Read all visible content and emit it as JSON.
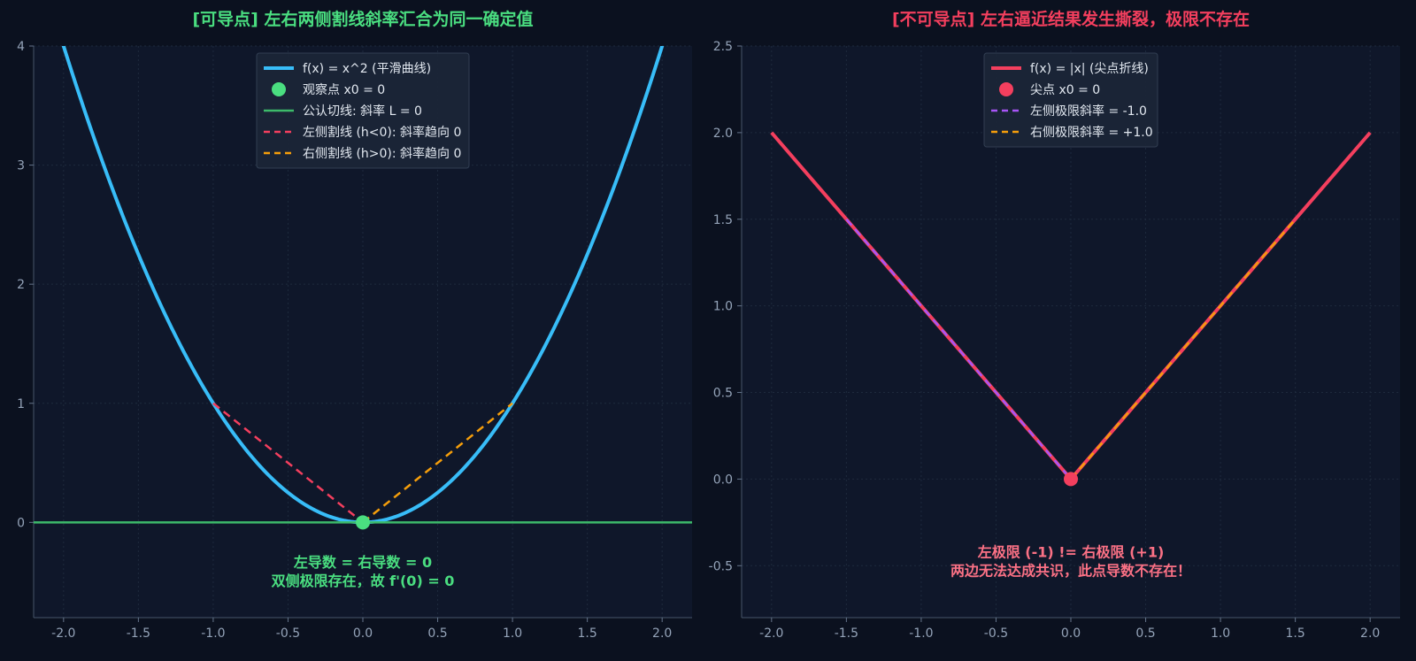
{
  "chart_data": [
    {
      "type": "line",
      "title": "[可导点] 左右两侧割线斜率汇合为同一确定值",
      "title_color": "#4ade80",
      "xlim": [
        -2.2,
        2.2
      ],
      "ylim": [
        -0.8,
        4.0
      ],
      "x_ticks": [
        -2.0,
        -1.5,
        -1.0,
        -0.5,
        0.0,
        0.5,
        1.0,
        1.5,
        2.0
      ],
      "x_tick_labels": [
        "-2.0",
        "-1.5",
        "-1.0",
        "-0.5",
        "0.0",
        "0.5",
        "1.0",
        "1.5",
        "2.0"
      ],
      "y_ticks": [
        0,
        1,
        2,
        3,
        4
      ],
      "y_tick_labels": [
        "0",
        "1",
        "2",
        "3",
        "4"
      ],
      "grid": true,
      "legend_position": "top-center",
      "series": [
        {
          "name": "f(x) = x^2 (平滑曲线)",
          "kind": "function",
          "function": "x^2",
          "x_range": [
            -2.2,
            2.2
          ],
          "color": "#38bdf8",
          "dash": "solid"
        },
        {
          "name": "观察点 x0 = 0",
          "kind": "point",
          "x": [
            0
          ],
          "y": [
            0
          ],
          "color": "#4ade80"
        },
        {
          "name": "公认切线: 斜率 L = 0",
          "kind": "line",
          "x": [
            -2.2,
            2.2
          ],
          "y": [
            0,
            0
          ],
          "color": "#3dba6a",
          "dash": "solid"
        },
        {
          "name": "左侧割线 (h<0): 斜率趋向 0",
          "kind": "line",
          "x": [
            -1.0,
            0.0
          ],
          "y": [
            1.0,
            0.0
          ],
          "color": "#f43f5e",
          "dash": "dashed"
        },
        {
          "name": "右侧割线 (h>0): 斜率趋向 0",
          "kind": "line",
          "x": [
            0.0,
            1.0
          ],
          "y": [
            0.0,
            1.0
          ],
          "color": "#f59e0b",
          "dash": "dashed"
        }
      ],
      "annotation": {
        "lines": [
          "左导数 = 右导数 = 0",
          "双侧极限存在，故 f'(0) = 0"
        ],
        "color": "#4ade80",
        "x": 0.0,
        "y": -0.45
      }
    },
    {
      "type": "line",
      "title": "[不可导点] 左右逼近结果发生撕裂，极限不存在",
      "title_color": "#f43f5e",
      "xlim": [
        -2.2,
        2.2
      ],
      "ylim": [
        -0.8,
        2.5
      ],
      "x_ticks": [
        -2.0,
        -1.5,
        -1.0,
        -0.5,
        0.0,
        0.5,
        1.0,
        1.5,
        2.0
      ],
      "x_tick_labels": [
        "-2.0",
        "-1.5",
        "-1.0",
        "-0.5",
        "0.0",
        "0.5",
        "1.0",
        "1.5",
        "2.0"
      ],
      "y_ticks": [
        -0.5,
        0.0,
        0.5,
        1.0,
        1.5,
        2.0,
        2.5
      ],
      "y_tick_labels": [
        "-0.5",
        "0.0",
        "0.5",
        "1.0",
        "1.5",
        "2.0",
        "2.5"
      ],
      "grid": true,
      "legend_position": "top-center",
      "series": [
        {
          "name": "f(x) = |x| (尖点折线)",
          "kind": "line",
          "x": [
            -2.0,
            0.0,
            2.0
          ],
          "y": [
            2.0,
            0.0,
            2.0
          ],
          "color": "#f43f5e",
          "dash": "solid"
        },
        {
          "name": "尖点 x0 = 0",
          "kind": "point",
          "x": [
            0
          ],
          "y": [
            0
          ],
          "color": "#f43f5e"
        },
        {
          "name": "左侧极限斜率 = -1.0",
          "kind": "line",
          "x": [
            -1.5,
            0.0
          ],
          "y": [
            1.5,
            0.0
          ],
          "color": "#a855f7",
          "dash": "dashed"
        },
        {
          "name": "右侧极限斜率 = +1.0",
          "kind": "line",
          "x": [
            0.0,
            1.5
          ],
          "y": [
            0.0,
            1.5
          ],
          "color": "#f59e0b",
          "dash": "dashed"
        }
      ],
      "annotation": {
        "lines": [
          "左极限 (-1) != 右极限 (+1)",
          "两边无法达成共识，此点导数不存在！"
        ],
        "color": "#fb7185",
        "x": 0.0,
        "y": -0.5
      }
    }
  ]
}
